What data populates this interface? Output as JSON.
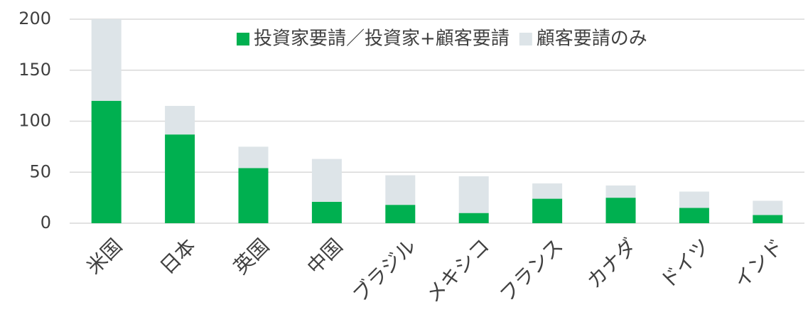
{
  "chart_data": {
    "type": "bar",
    "stacked": true,
    "categories": [
      "米国",
      "日本",
      "英国",
      "中国",
      "ブラジル",
      "メキシコ",
      "フランス",
      "カナダ",
      "ドイツ",
      "インド"
    ],
    "series": [
      {
        "name": "投資家要請／投資家+顧客要請",
        "color": "#00b050",
        "values": [
          120,
          87,
          54,
          21,
          18,
          10,
          24,
          25,
          15,
          8
        ]
      },
      {
        "name": "顧客要請のみ",
        "color": "#dde4e8",
        "values": [
          80,
          28,
          21,
          42,
          29,
          36,
          15,
          12,
          16,
          14
        ]
      }
    ],
    "ylim": [
      0,
      200
    ],
    "yticks": [
      0,
      50,
      100,
      150,
      200
    ],
    "grid": true,
    "legend": "top-right"
  }
}
